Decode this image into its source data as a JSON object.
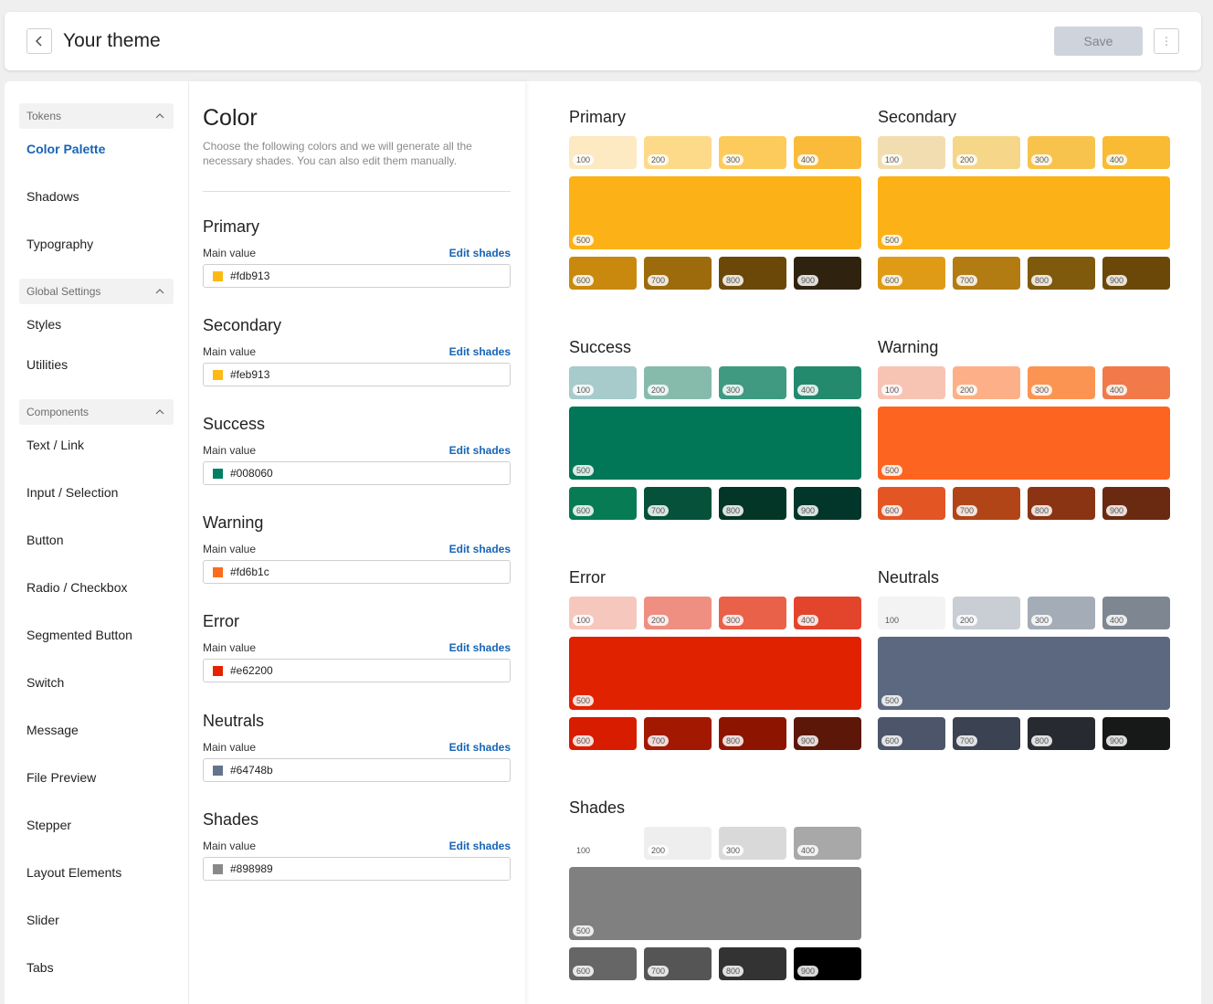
{
  "header": {
    "title": "Your theme",
    "save_label": "Save"
  },
  "sidebar": {
    "sections": [
      {
        "label": "Tokens",
        "items": [
          "Color Palette",
          "Shadows",
          "Typography"
        ]
      },
      {
        "label": "Global Settings",
        "items": [
          "Styles",
          "Utilities"
        ]
      },
      {
        "label": "Components",
        "items": [
          "Text / Link",
          "Input / Selection",
          "Button",
          "Radio / Checkbox",
          "Segmented Button",
          "Switch",
          "Message",
          "File Preview",
          "Stepper",
          "Layout Elements",
          "Slider",
          "Tabs"
        ]
      }
    ],
    "active_item": "Color Palette"
  },
  "form": {
    "title": "Color",
    "description": "Choose the following colors and we will generate all the necessary shades. You can also edit them manually.",
    "main_value_label": "Main value",
    "edit_label": "Edit shades",
    "colors": [
      {
        "name": "Primary",
        "value": "#fdb913"
      },
      {
        "name": "Secondary",
        "value": "#feb913"
      },
      {
        "name": "Success",
        "value": "#008060"
      },
      {
        "name": "Warning",
        "value": "#fd6b1c"
      },
      {
        "name": "Error",
        "value": "#e62200"
      },
      {
        "name": "Neutrals",
        "value": "#64748b"
      },
      {
        "name": "Shades",
        "value": "#898989"
      }
    ]
  },
  "palettes": [
    {
      "name": "Primary",
      "shades": [
        "#fde9c2",
        "#fdd98a",
        "#fdcb5c",
        "#fbbb3a",
        "#fcb117",
        "#c8890e",
        "#9d6b0c",
        "#6b4808",
        "#2f2310"
      ]
    },
    {
      "name": "Secondary",
      "shades": [
        "#f2ddb1",
        "#f6d688",
        "#f8c34d",
        "#f9bb33",
        "#fcb117",
        "#e09b16",
        "#b27c12",
        "#7f590c",
        "#6b4808"
      ]
    },
    {
      "name": "Success",
      "shades": [
        "#a7cacb",
        "#86bbab",
        "#3f9a81",
        "#238a6e",
        "#017757",
        "#077c54",
        "#05513a",
        "#033626",
        "#02362a"
      ]
    },
    {
      "name": "Warning",
      "shades": [
        "#f7c3b3",
        "#fdb087",
        "#fb9452",
        "#f2794a",
        "#fd6420",
        "#e45524",
        "#b24518",
        "#8a3413",
        "#6a2a12"
      ]
    },
    {
      "name": "Error",
      "shades": [
        "#f6c7bc",
        "#ef8f82",
        "#ea6149",
        "#e3452c",
        "#e02200",
        "#d81c00",
        "#a31800",
        "#8d1500",
        "#5c1709"
      ]
    },
    {
      "name": "Neutrals",
      "shades": [
        "#f3f3f3",
        "#c9cdd4",
        "#a4acb7",
        "#7e8791",
        "#5c6880",
        "#4c5569",
        "#3b4252",
        "#272a31",
        "#171818"
      ]
    },
    {
      "name": "Shades",
      "shades": [
        "#ffffff",
        "#eeeeee",
        "#d9d9d9",
        "#a8a8a8",
        "#808080",
        "#666666",
        "#555555",
        "#333333",
        "#000000"
      ]
    }
  ],
  "shade_labels": [
    "100",
    "200",
    "300",
    "400",
    "500",
    "600",
    "700",
    "800",
    "900"
  ],
  "icons": {
    "back": "chevron-left-icon",
    "more": "more-vertical-icon",
    "collapse": "chevron-up-icon"
  }
}
